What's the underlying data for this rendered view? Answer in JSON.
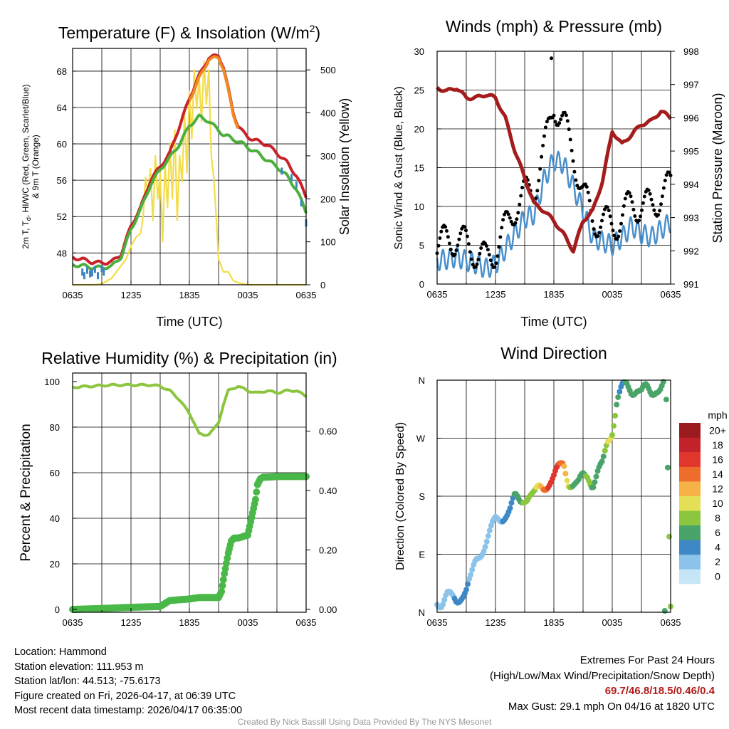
{
  "colors": {
    "red": "#c9222a",
    "green": "#4caf3c",
    "orange": "#f08a22",
    "blue": "#3c86c4",
    "yellow": "#f3dd4a",
    "maroon": "#a51c1c",
    "windblue": "#4a90cd",
    "black": "#000000",
    "rh": "#8cc63f",
    "precip": "#4ab848"
  },
  "x_ticks": [
    "0635",
    "1235",
    "1835",
    "0035",
    "0635"
  ],
  "chart_data": [
    {
      "type": "line",
      "title": "Temperature (F) & Insolation (W/m",
      "title_sup": "2",
      "title_end": ")",
      "xlabel": "Time (UTC)",
      "ylabel_lines": [
        "2m T, T",
        "d",
        ", HI/WC (Red, Green, Scarlet/Blue)",
        "& 9m T (Orange)"
      ],
      "ylabel2": "Solar Insolation (Yellow)",
      "ylim": [
        44.5,
        70.5
      ],
      "y_ticks": [
        "48",
        "52",
        "56",
        "60",
        "64",
        "68"
      ],
      "y2lim": [
        0,
        550
      ],
      "y2_ticks": [
        "0",
        "100",
        "200",
        "300",
        "400",
        "500"
      ],
      "series": [
        {
          "name": "2m T",
          "color": "red",
          "t": [
            0,
            1,
            2,
            3,
            4,
            5,
            6,
            7,
            8,
            9,
            10,
            11,
            12,
            13,
            14,
            15,
            15.5,
            16,
            16.5,
            17,
            17.5,
            18,
            18.5,
            19,
            20,
            21,
            22,
            23,
            24
          ],
          "values": [
            47.5,
            47.3,
            47.0,
            46.9,
            47.0,
            47.9,
            51.0,
            53.0,
            56.0,
            57.5,
            59.0,
            62.0,
            65.0,
            67.5,
            69.5,
            69.7,
            68.5,
            66.0,
            63.5,
            62.0,
            61.3,
            60.8,
            60.5,
            60.3,
            59.9,
            59.0,
            58.0,
            56.5,
            54.2
          ]
        },
        {
          "name": "Td",
          "color": "green",
          "t": [
            0,
            1,
            2,
            3,
            4,
            5,
            6,
            7,
            8,
            9,
            10,
            11,
            12,
            13,
            14,
            15,
            15.5,
            16,
            16.5,
            17,
            17.5,
            18,
            18.5,
            19,
            20,
            21,
            22,
            23,
            24
          ],
          "values": [
            46.7,
            46.6,
            46.4,
            46.4,
            46.5,
            47.6,
            50.6,
            52.8,
            55.5,
            57.2,
            58.5,
            60.0,
            62.0,
            63.0,
            62.5,
            61.5,
            61.0,
            60.8,
            60.5,
            60.3,
            60.0,
            59.6,
            59.3,
            59.0,
            58.2,
            57.5,
            56.5,
            55.0,
            52.5
          ]
        },
        {
          "name": "9m T",
          "color": "orange",
          "t": [
            12,
            13,
            14,
            15,
            15.5,
            16,
            16.5,
            17
          ],
          "values": [
            64.8,
            67.2,
            69.3,
            69.5,
            68.3,
            65.8,
            63.3,
            61.8
          ]
        },
        {
          "name": "WC",
          "color": "blue",
          "t": [
            1,
            1.2,
            1.5,
            1.8,
            2,
            2.3,
            2.6,
            3,
            3.2,
            21.5,
            22.5,
            23,
            23.5,
            24
          ],
          "values": [
            45.9,
            45.5,
            46.1,
            45.7,
            45.8,
            46.2,
            45.5,
            46.3,
            45.9,
            57.0,
            56.3,
            55.5,
            53.5,
            51.3
          ]
        }
      ],
      "insolation": {
        "t": [
          0,
          2,
          3,
          4,
          4.5,
          5,
          5.5,
          6,
          6.5,
          7,
          7.25,
          7.5,
          7.75,
          8,
          8.25,
          8.5,
          8.75,
          9,
          9.25,
          9.5,
          9.75,
          10,
          10.25,
          10.5,
          10.75,
          11,
          11.25,
          11.5,
          11.75,
          12,
          12.25,
          12.5,
          12.75,
          13,
          13.25,
          13.5,
          13.75,
          14,
          14.25,
          14.5,
          14.75,
          15,
          15.5,
          16,
          16.5,
          17,
          18,
          19,
          24
        ],
        "values": [
          0,
          0,
          2,
          15,
          30,
          45,
          60,
          90,
          110,
          120,
          160,
          250,
          210,
          270,
          150,
          300,
          200,
          260,
          100,
          280,
          180,
          330,
          200,
          360,
          150,
          300,
          240,
          400,
          260,
          450,
          340,
          500,
          410,
          480,
          380,
          520,
          420,
          500,
          300,
          250,
          160,
          60,
          30,
          30,
          10,
          5,
          0,
          0,
          0
        ]
      }
    },
    {
      "type": "line",
      "title": "Winds (mph) & Pressure (mb)",
      "xlabel": "Time (UTC)",
      "ylabel": "Sonic Wind & Gust (Blue, Black)",
      "ylabel2": "Station Pressure (Maroon)",
      "ylim": [
        0,
        30
      ],
      "y_ticks": [
        "0",
        "5",
        "10",
        "15",
        "20",
        "25",
        "30"
      ],
      "y2lim": [
        991,
        998
      ],
      "y2_ticks": [
        "991",
        "992",
        "993",
        "994",
        "995",
        "996",
        "997",
        "998"
      ],
      "pressure": {
        "t": [
          0,
          1,
          2,
          3,
          4,
          5,
          6,
          7,
          8,
          9,
          10,
          11,
          12,
          13,
          14,
          15,
          16,
          17,
          18,
          19,
          20,
          21,
          22,
          23,
          24
        ],
        "values": [
          996.9,
          996.8,
          996.9,
          996.6,
          996.6,
          996.7,
          996.6,
          996.0,
          995.0,
          994.2,
          993.4,
          993.2,
          992.9,
          992.5,
          992.0,
          992.9,
          993.2,
          994.1,
          995.6,
          995.2,
          995.5,
          995.8,
          995.9,
          996.2,
          996.0
        ]
      },
      "wind": {
        "t": [
          0,
          1,
          2,
          3,
          4,
          5,
          6,
          7,
          8,
          9,
          10,
          11,
          12,
          13,
          14,
          15,
          16,
          17,
          18,
          19,
          20,
          21,
          22,
          23,
          24
        ],
        "values": [
          3.0,
          3.2,
          3.5,
          3.0,
          2.6,
          2.0,
          2.5,
          4.5,
          6.5,
          8.5,
          9.0,
          13.5,
          16.0,
          15.5,
          12.5,
          9.5,
          6.0,
          5.5,
          5.0,
          6.0,
          7.5,
          6.5,
          6.0,
          7.0,
          8.0
        ]
      },
      "gust": {
        "t": [
          0,
          1,
          2,
          3,
          4,
          5,
          6,
          7,
          8,
          9,
          10,
          11,
          12,
          13,
          14,
          15,
          16,
          17,
          18,
          19,
          20,
          21,
          22,
          23,
          24
        ],
        "values": [
          5.0,
          5.5,
          6.0,
          5.0,
          4.2,
          3.0,
          4.5,
          7.0,
          10.0,
          11.5,
          12.5,
          17.0,
          23.5,
          20.5,
          17.0,
          11.5,
          8.5,
          8.0,
          7.5,
          8.5,
          10.5,
          10.0,
          10.0,
          11.5,
          12.5
        ],
        "max": {
          "t": 11.75,
          "value": 29.1
        }
      }
    },
    {
      "type": "line",
      "title": "Relative Humidity (%) & Precipitation (in)",
      "ylabel": "Percent & Precipitation",
      "ylim": [
        0,
        100
      ],
      "y_ticks": [
        "0",
        "20",
        "40",
        "60",
        "80",
        "100"
      ],
      "y2lim": [
        0,
        0.7667
      ],
      "y2_ticks": [
        "0.00",
        "0.20",
        "0.40",
        "0.60"
      ],
      "rh": {
        "t": [
          0,
          2,
          4,
          6,
          8,
          9,
          10,
          10.5,
          11,
          11.5,
          12,
          12.5,
          13,
          13.5,
          14,
          14.5,
          15,
          15.5,
          16,
          16.5,
          17,
          18,
          19,
          20,
          21,
          22,
          23,
          24
        ],
        "values": [
          97.5,
          98,
          98.5,
          98.5,
          98.5,
          98,
          96,
          94,
          92,
          89,
          86,
          82,
          77,
          76.5,
          77,
          79,
          82,
          90,
          96,
          97,
          98,
          96,
          95,
          96,
          95,
          96,
          96,
          93.5
        ]
      },
      "precip": {
        "t": [
          0,
          3,
          6,
          9,
          9.5,
          10,
          12,
          13,
          15,
          15.3,
          15.6,
          16,
          16.3,
          16.6,
          17,
          17.5,
          18,
          18.4,
          18.8,
          19,
          19.3,
          19.6,
          20,
          21,
          22,
          23,
          24
        ],
        "values": [
          0,
          0.003,
          0.007,
          0.01,
          0.02,
          0.03,
          0.035,
          0.04,
          0.04,
          0.06,
          0.12,
          0.19,
          0.23,
          0.24,
          0.24,
          0.245,
          0.25,
          0.31,
          0.37,
          0.42,
          0.44,
          0.445,
          0.445,
          0.447,
          0.447,
          0.447,
          0.447
        ]
      }
    },
    {
      "type": "scatter",
      "title": "Wind Direction",
      "ylabel": "Direction (Colored By Speed)",
      "ylim": [
        0,
        360
      ],
      "y_ticks": [
        "N",
        "E",
        "S",
        "W",
        "N"
      ],
      "colorbar_label": "mph",
      "colorbar_ticks": [
        "0",
        "2",
        "4",
        "6",
        "8",
        "10",
        "12",
        "14",
        "16",
        "18",
        "20+"
      ],
      "colorbar_colors": [
        "#c6e5f7",
        "#8cc3ea",
        "#3f88c6",
        "#4aa469",
        "#8cc63f",
        "#e5df56",
        "#f6b247",
        "#ee6d2c",
        "#e0362c",
        "#c2232a",
        "#9b1b1f"
      ],
      "direction": {
        "t": [
          0,
          0.5,
          1,
          1.5,
          2,
          2.5,
          3,
          3.5,
          4,
          4.5,
          5,
          5.5,
          6,
          6.5,
          7,
          7.5,
          8,
          8.5,
          9,
          9.5,
          10,
          10.5,
          11,
          11.5,
          12,
          12.5,
          13,
          13.5,
          14,
          14.5,
          15,
          15.5,
          16,
          16.5,
          17,
          17.5,
          18,
          18.5,
          19,
          19.5,
          20,
          20.5,
          21,
          21.5,
          22,
          22.5,
          23,
          23.5,
          24
        ],
        "values": [
          20,
          15,
          25,
          20,
          18,
          30,
          35,
          50,
          80,
          95,
          110,
          125,
          140,
          145,
          155,
          160,
          175,
          170,
          180,
          185,
          180,
          190,
          195,
          205,
          210,
          220,
          230,
          205,
          200,
          195,
          210,
          215,
          200,
          215,
          225,
          265,
          285,
          330,
          345,
          350,
          345,
          350,
          340,
          345,
          340,
          350,
          348,
          355,
          5
        ],
        "speed": [
          2,
          2,
          3,
          3,
          4,
          4,
          4,
          3,
          3,
          2,
          2,
          2,
          3,
          2,
          3,
          4,
          6,
          6,
          7,
          8,
          9,
          11,
          13,
          15,
          17,
          16,
          13,
          9,
          6,
          7,
          6,
          8,
          5,
          6,
          7,
          9,
          8,
          6,
          5,
          6,
          5,
          6,
          6,
          7,
          6,
          6,
          7,
          7,
          8
        ]
      }
    }
  ],
  "footer": {
    "location": "Location: Hammond",
    "elevation": "Station elevation: 111.953 m",
    "latlon": "Station lat/lon: 44.513; -75.6173",
    "created": "Figure created on Fri, 2026-04-17, at 06:39 UTC",
    "recent": "Most recent data timestamp: 2026/04/17 06:35:00",
    "extremes_title": "Extremes For Past 24 Hours",
    "extremes_sub": "(High/Low/Max Wind/Precipitation/Snow Depth)",
    "extremes_values": "69.7/46.8/18.5/0.46/0.4",
    "max_gust": "Max Gust: 29.1 mph On 04/16 at 1820 UTC",
    "credit": "Created By Nick Bassill Using Data Provided By The NYS Mesonet"
  }
}
